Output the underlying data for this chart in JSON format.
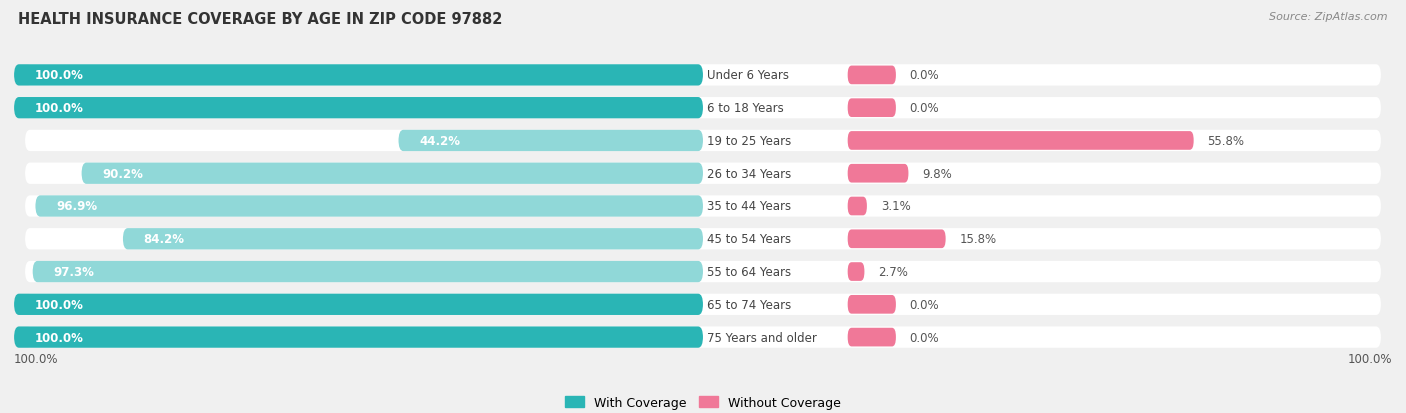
{
  "title": "HEALTH INSURANCE COVERAGE BY AGE IN ZIP CODE 97882",
  "source": "Source: ZipAtlas.com",
  "categories": [
    "Under 6 Years",
    "6 to 18 Years",
    "19 to 25 Years",
    "26 to 34 Years",
    "35 to 44 Years",
    "45 to 54 Years",
    "55 to 64 Years",
    "65 to 74 Years",
    "75 Years and older"
  ],
  "with_coverage": [
    100.0,
    100.0,
    44.2,
    90.2,
    96.9,
    84.2,
    97.3,
    100.0,
    100.0
  ],
  "without_coverage": [
    0.0,
    0.0,
    55.8,
    9.8,
    3.1,
    15.8,
    2.7,
    0.0,
    0.0
  ],
  "color_with": "#2ab5b5",
  "color_without": "#f07898",
  "color_with_light": "#90d8d8",
  "bg_color": "#f0f0f0",
  "bar_bg": "#e8e8e8",
  "bar_bg2": "#ffffff",
  "title_fontsize": 10.5,
  "label_fontsize": 8.5,
  "cat_fontsize": 8.5,
  "legend_fontsize": 9,
  "source_fontsize": 8,
  "left_axis_label": "100.0%",
  "right_axis_label": "100.0%"
}
